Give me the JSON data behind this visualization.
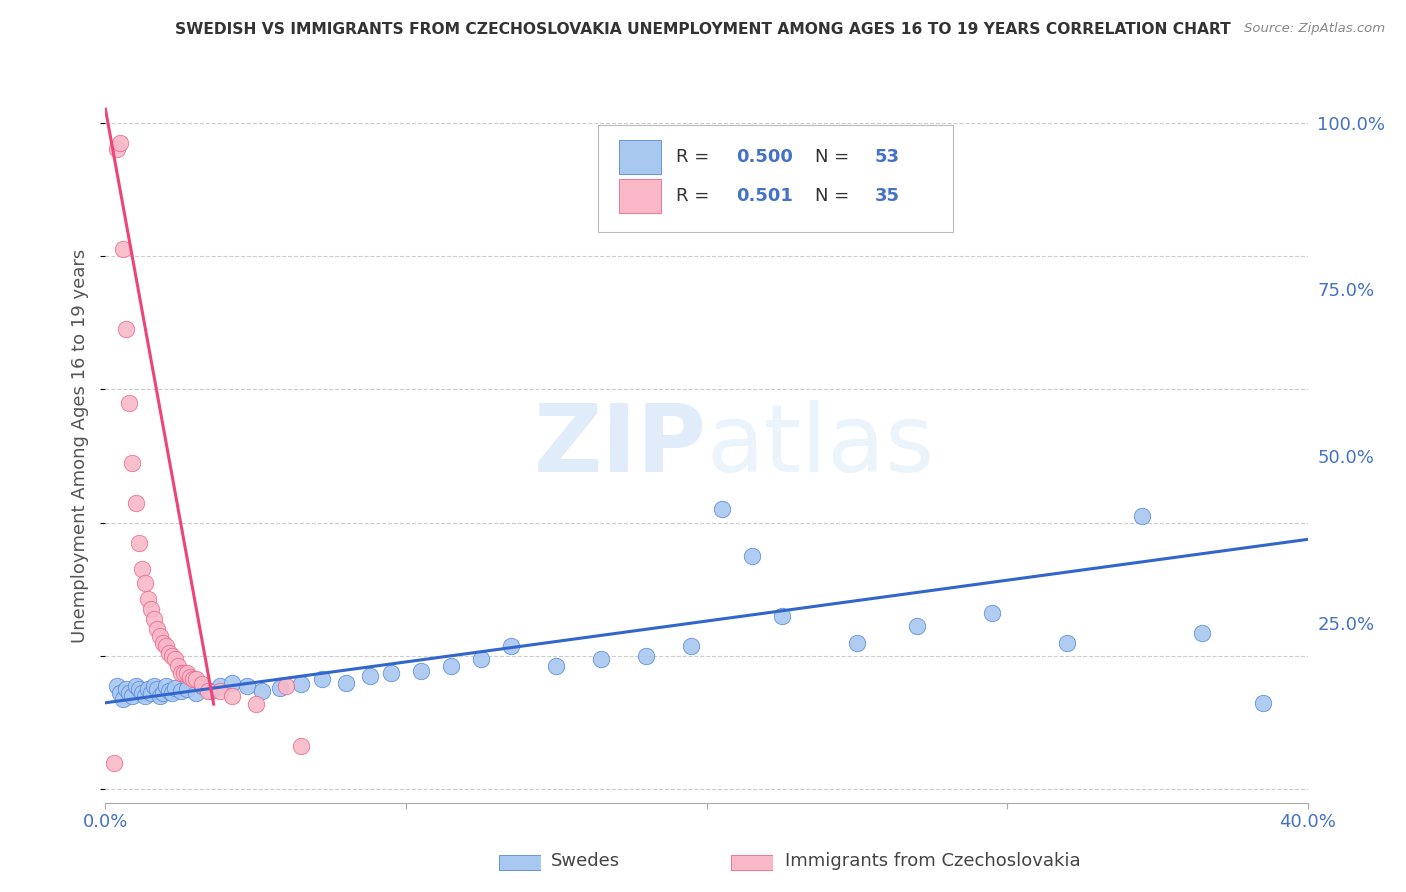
{
  "title": "SWEDISH VS IMMIGRANTS FROM CZECHOSLOVAKIA UNEMPLOYMENT AMONG AGES 16 TO 19 YEARS CORRELATION CHART",
  "source": "Source: ZipAtlas.com",
  "ylabel": "Unemployment Among Ages 16 to 19 years",
  "xlim": [
    0.0,
    0.4
  ],
  "ylim": [
    -0.02,
    1.05
  ],
  "xticks": [
    0.0,
    0.1,
    0.2,
    0.3,
    0.4
  ],
  "yticks_right": [
    0.0,
    0.25,
    0.5,
    0.75,
    1.0
  ],
  "ytick_labels_right": [
    "",
    "25.0%",
    "50.0%",
    "75.0%",
    "100.0%"
  ],
  "xtick_labels": [
    "0.0%",
    "",
    "",
    "",
    "40.0%"
  ],
  "watermark_zip": "ZIP",
  "watermark_atlas": "atlas",
  "legend_blue_R": "0.500",
  "legend_blue_N": "53",
  "legend_pink_R": "0.501",
  "legend_pink_N": "35",
  "legend_label_blue": "Swedes",
  "legend_label_pink": "Immigrants from Czechoslovakia",
  "blue_fill": "#A8C8F0",
  "pink_fill": "#F8B8C8",
  "blue_edge": "#5588DD",
  "pink_edge": "#EE6688",
  "blue_line_color": "#3366CC",
  "pink_line_color": "#EE4477",
  "title_color": "#333333",
  "axis_label_color": "#555555",
  "tick_color": "#4472C4",
  "background_color": "#FFFFFF",
  "blue_scatter_x": [
    0.004,
    0.005,
    0.006,
    0.007,
    0.008,
    0.009,
    0.01,
    0.011,
    0.012,
    0.013,
    0.014,
    0.015,
    0.016,
    0.017,
    0.018,
    0.019,
    0.02,
    0.021,
    0.022,
    0.023,
    0.025,
    0.027,
    0.03,
    0.032,
    0.035,
    0.038,
    0.042,
    0.047,
    0.052,
    0.058,
    0.065,
    0.072,
    0.08,
    0.088,
    0.095,
    0.105,
    0.115,
    0.125,
    0.135,
    0.15,
    0.165,
    0.18,
    0.195,
    0.205,
    0.215,
    0.225,
    0.25,
    0.27,
    0.295,
    0.32,
    0.345,
    0.365,
    0.385
  ],
  "blue_scatter_y": [
    0.155,
    0.145,
    0.135,
    0.15,
    0.145,
    0.14,
    0.155,
    0.15,
    0.145,
    0.14,
    0.15,
    0.145,
    0.155,
    0.15,
    0.14,
    0.145,
    0.155,
    0.148,
    0.145,
    0.152,
    0.148,
    0.15,
    0.145,
    0.155,
    0.148,
    0.155,
    0.16,
    0.155,
    0.148,
    0.152,
    0.158,
    0.165,
    0.16,
    0.17,
    0.175,
    0.178,
    0.185,
    0.195,
    0.215,
    0.185,
    0.195,
    0.2,
    0.215,
    0.42,
    0.35,
    0.26,
    0.22,
    0.245,
    0.265,
    0.22,
    0.41,
    0.235,
    0.13
  ],
  "blue_line_x": [
    0.0,
    0.4
  ],
  "blue_line_y": [
    0.13,
    0.375
  ],
  "pink_scatter_x": [
    0.003,
    0.004,
    0.005,
    0.006,
    0.007,
    0.008,
    0.009,
    0.01,
    0.011,
    0.012,
    0.013,
    0.014,
    0.015,
    0.016,
    0.017,
    0.018,
    0.019,
    0.02,
    0.021,
    0.022,
    0.023,
    0.024,
    0.025,
    0.026,
    0.027,
    0.028,
    0.029,
    0.03,
    0.032,
    0.034,
    0.038,
    0.042,
    0.05,
    0.06,
    0.065
  ],
  "pink_scatter_y": [
    0.04,
    0.96,
    0.97,
    0.81,
    0.69,
    0.58,
    0.49,
    0.43,
    0.37,
    0.33,
    0.31,
    0.285,
    0.27,
    0.255,
    0.24,
    0.23,
    0.22,
    0.215,
    0.205,
    0.2,
    0.195,
    0.185,
    0.175,
    0.175,
    0.175,
    0.168,
    0.165,
    0.165,
    0.158,
    0.148,
    0.148,
    0.14,
    0.128,
    0.155,
    0.065
  ],
  "pink_line_x": [
    0.0,
    0.036
  ],
  "pink_line_y": [
    1.02,
    0.128
  ]
}
